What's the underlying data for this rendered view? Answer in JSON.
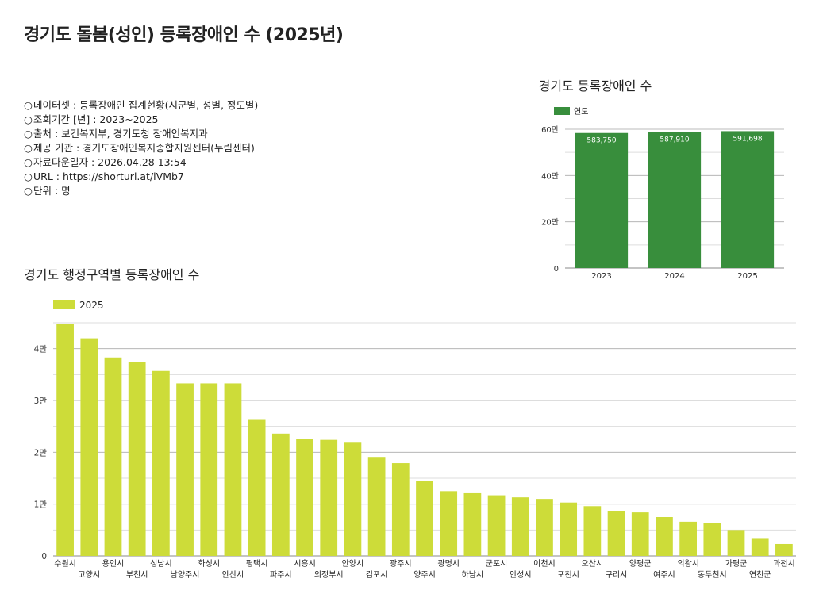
{
  "page": {
    "title": "경기도 돌봄(성인) 등록장애인 수 (2025년)"
  },
  "meta": {
    "bullet": "○",
    "lines": [
      "데이터셋 : 등록장애인 집계현황(시군별, 성별, 정도별)",
      "조회기간 [년] : 2023~2025",
      "출처 : 보건복지부, 경기도청 장애인복지과",
      "제공 기관 : 경기도장애인복지종합지원센터(누림센터)",
      "자료다운일자 : 2026.04.28 13:54",
      "URL :  https://shorturl.at/lVMb7",
      "단위 : 명"
    ]
  },
  "colors": {
    "small_bar": "#388e3c",
    "big_bar": "#cddc39",
    "grid": "#cccccc",
    "axis": "#333333"
  },
  "chart_data": [
    {
      "type": "bar",
      "title": "경기도 등록장애인 수",
      "legend": "연도",
      "legend_position": "top-left",
      "categories": [
        "2023",
        "2024",
        "2025"
      ],
      "values": [
        583750,
        587910,
        591698
      ],
      "value_labels": [
        "583,750",
        "587,910",
        "591,698"
      ],
      "ylim": [
        0,
        600000
      ],
      "yticks": [
        0,
        200000,
        400000,
        600000
      ],
      "ytick_labels": [
        "0",
        "20만",
        "40만",
        "60만"
      ],
      "grid": true
    },
    {
      "type": "bar",
      "title": "경기도 행정구역별 등록장애인 수",
      "legend": "2025",
      "legend_position": "top-left",
      "categories": [
        "수원시",
        "고양시",
        "용인시",
        "부천시",
        "성남시",
        "남양주시",
        "화성시",
        "안산시",
        "평택시",
        "파주시",
        "시흥시",
        "의정부시",
        "안양시",
        "김포시",
        "광주시",
        "양주시",
        "광명시",
        "하남시",
        "군포시",
        "안성시",
        "이천시",
        "포천시",
        "오산시",
        "구리시",
        "양평군",
        "여주시",
        "의왕시",
        "동두천시",
        "가평군",
        "연천군",
        "과천시"
      ],
      "values": [
        44800,
        42000,
        38300,
        37400,
        35700,
        33300,
        33300,
        33300,
        26400,
        23600,
        22500,
        22400,
        22000,
        19100,
        17900,
        14500,
        12500,
        12100,
        11700,
        11300,
        11000,
        10300,
        9600,
        8600,
        8400,
        7500,
        6600,
        6300,
        5000,
        3300,
        2300
      ],
      "ylim": [
        0,
        45000
      ],
      "yticks": [
        0,
        10000,
        20000,
        30000,
        40000
      ],
      "ytick_labels": [
        "0",
        "1만",
        "2만",
        "3만",
        "4만"
      ],
      "grid": true
    }
  ]
}
